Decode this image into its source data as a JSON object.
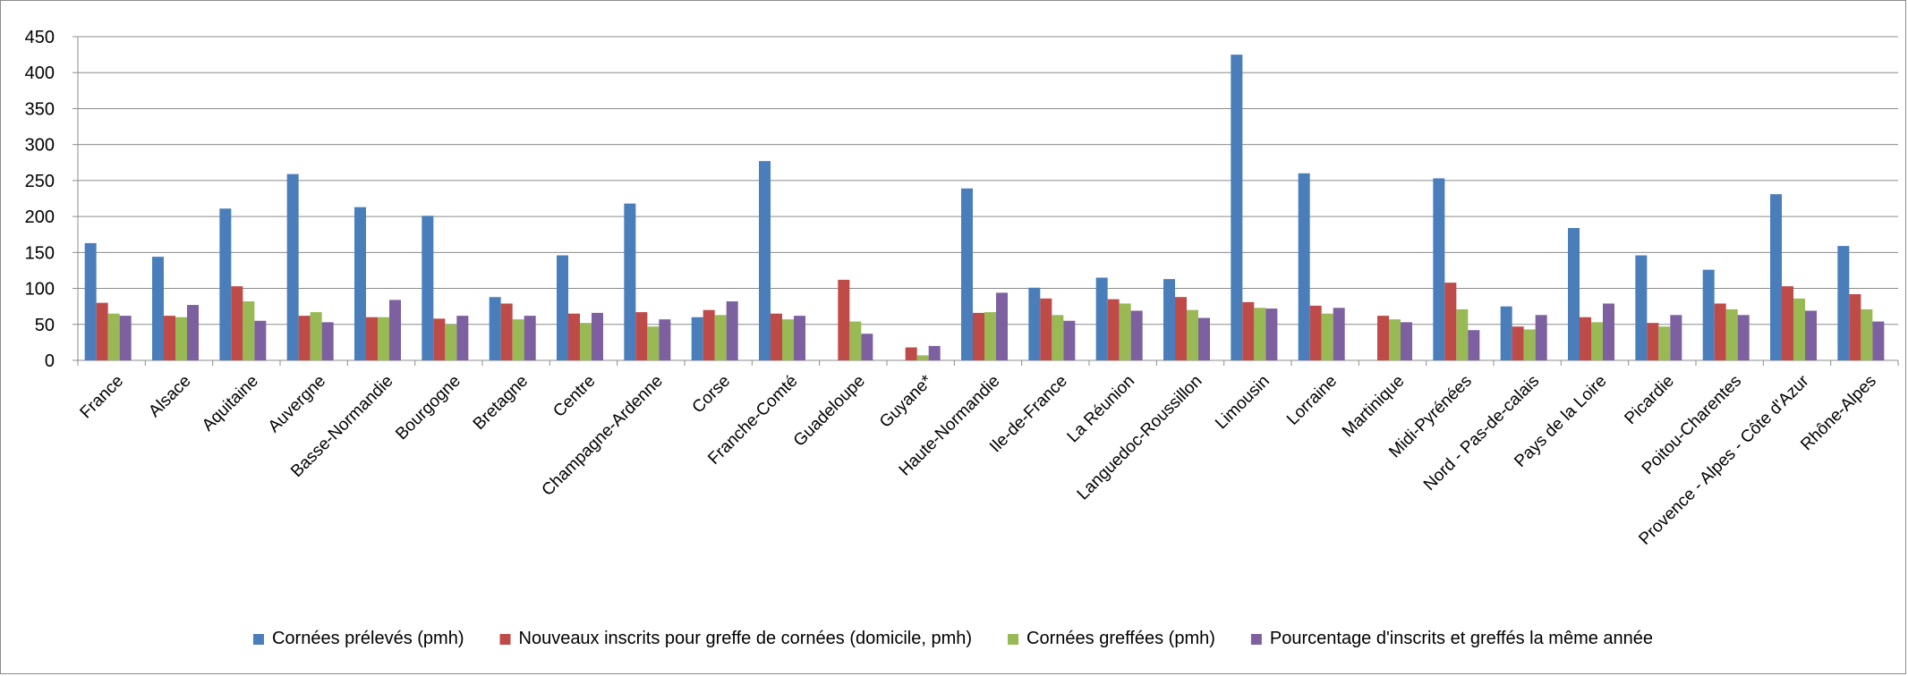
{
  "chart_data": {
    "type": "bar",
    "title": "",
    "xlabel": "",
    "ylabel": "",
    "ylim": [
      0,
      450
    ],
    "yticks": [
      0,
      50,
      100,
      150,
      200,
      250,
      300,
      350,
      400,
      450
    ],
    "grid": "horizontal",
    "legend_position": "bottom",
    "categories": [
      "France",
      "Alsace",
      "Aquitaine",
      "Auvergne",
      "Basse-Normandie",
      "Bourgogne",
      "Bretagne",
      "Centre",
      "Champagne-Ardenne",
      "Corse",
      "Franche-Comté",
      "Guadeloupe",
      "Guyane*",
      "Haute-Normandie",
      "Ile-de-France",
      "La Réunion",
      "Languedoc-Roussillon",
      "Limousin",
      "Lorraine",
      "Martinique",
      "Midi-Pyrénées",
      "Nord - Pas-de-calais",
      "Pays de la Loire",
      "Picardie",
      "Poitou-Charentes",
      "Provence - Alpes - Côte d'Azur",
      "Rhône-Alpes"
    ],
    "series": [
      {
        "name": "Cornées prélevés (pmh)",
        "color": "#4a7ebb",
        "values": [
          163,
          144,
          211,
          259,
          213,
          201,
          88,
          146,
          218,
          60,
          277,
          null,
          null,
          239,
          101,
          115,
          113,
          425,
          260,
          null,
          253,
          75,
          184,
          146,
          126,
          231,
          159
        ]
      },
      {
        "name": "Nouveaux inscrits pour greffe de cornées (domicile, pmh)",
        "color": "#be4b48",
        "values": [
          80,
          62,
          103,
          62,
          60,
          58,
          79,
          65,
          67,
          70,
          65,
          112,
          18,
          66,
          86,
          85,
          88,
          81,
          76,
          62,
          108,
          47,
          60,
          52,
          79,
          103,
          92
        ]
      },
      {
        "name": "Cornées greffées (pmh)",
        "color": "#98b954",
        "values": [
          65,
          60,
          82,
          67,
          60,
          50,
          57,
          52,
          47,
          63,
          57,
          54,
          7,
          67,
          63,
          79,
          70,
          73,
          65,
          57,
          71,
          43,
          53,
          47,
          71,
          86,
          71
        ]
      },
      {
        "name": "Pourcentage d'inscrits et greffés la même année",
        "color": "#7d60a0",
        "values": [
          62,
          77,
          55,
          53,
          84,
          62,
          62,
          66,
          57,
          82,
          62,
          37,
          20,
          94,
          55,
          69,
          59,
          72,
          73,
          53,
          42,
          63,
          79,
          63,
          63,
          69,
          54
        ]
      }
    ]
  }
}
